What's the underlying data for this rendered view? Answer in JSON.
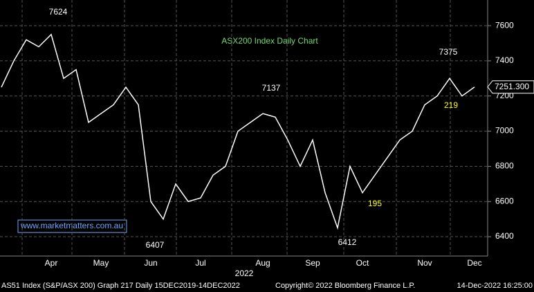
{
  "chart_data": {
    "type": "line",
    "title": "ASX200 Index Daily Chart",
    "categories": [
      null,
      null,
      null,
      null,
      "Apr",
      null,
      null,
      null,
      "May",
      null,
      null,
      null,
      "Jun",
      null,
      null,
      null,
      "Jul",
      null,
      null,
      null,
      null,
      "Aug",
      null,
      null,
      null,
      "Sep",
      null,
      null,
      null,
      "Oct",
      null,
      null,
      null,
      null,
      "Nov",
      null,
      null,
      null,
      "Dec"
    ],
    "series": [
      {
        "name": "AS51 Index",
        "color": "#ffffff",
        "values": [
          7250,
          7400,
          7520,
          7480,
          7550,
          7300,
          7350,
          7050,
          7100,
          7150,
          7250,
          7150,
          6600,
          6500,
          6700,
          6600,
          6620,
          6750,
          6800,
          7000,
          7050,
          7100,
          7080,
          6950,
          6800,
          6950,
          6650,
          6450,
          6800,
          6650,
          6750,
          6850,
          6950,
          7000,
          7150,
          7200,
          7300,
          7200,
          7251.3
        ]
      }
    ],
    "ylim": [
      6290,
      7746
    ],
    "yticks": [
      6400,
      6600,
      6800,
      7000,
      7200,
      7400,
      7600
    ],
    "grid": true,
    "year_label": "2022",
    "annotations": [
      {
        "text": "7624",
        "color": "#ffffff"
      },
      {
        "text": "6407",
        "color": "#ffffff"
      },
      {
        "text": "7137",
        "color": "#ffffff"
      },
      {
        "text": "6412",
        "color": "#ffffff"
      },
      {
        "text": "7375",
        "color": "#ffffff"
      },
      {
        "text": "219",
        "color": "#ffff00"
      },
      {
        "text": "195",
        "color": "#ffff00"
      }
    ],
    "last_price_label": "7251.300",
    "watermark": "www.marketmatters.com.au",
    "footer": [
      "AS51 Index (S&P/ASX 200) Graph 217  Daily 15DEC2019-14DEC2022",
      "Copyright© 2022 Bloomberg Finance L.P.",
      "14-Dec-2022 16:25:00"
    ]
  }
}
